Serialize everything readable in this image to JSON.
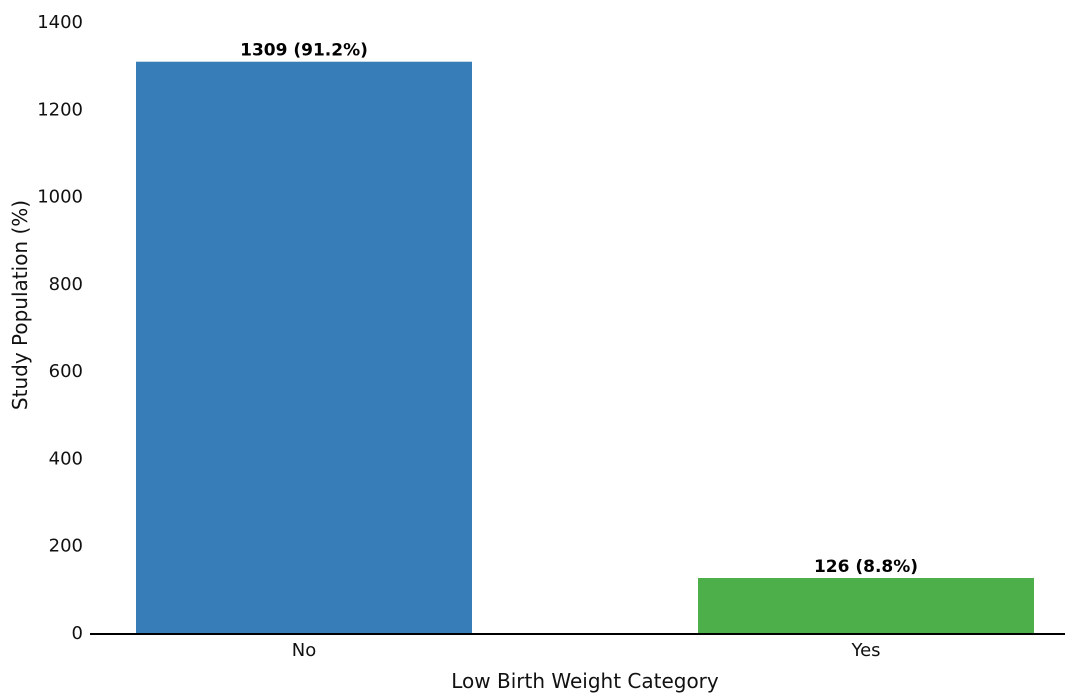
{
  "chart_data": {
    "type": "bar",
    "categories": [
      "No",
      "Yes"
    ],
    "values": [
      1309,
      126
    ],
    "data_labels": [
      "1309 (91.2%)",
      "126 (8.8%)"
    ],
    "colors": [
      "#377eb8",
      "#4daf4a"
    ],
    "xlabel": "Low Birth Weight Category",
    "ylabel": "Study Population (%)",
    "ylim": [
      0,
      1400
    ],
    "yticks": [
      0,
      200,
      400,
      600,
      800,
      1000,
      1200,
      1400
    ],
    "grid": false,
    "legend": "none"
  }
}
